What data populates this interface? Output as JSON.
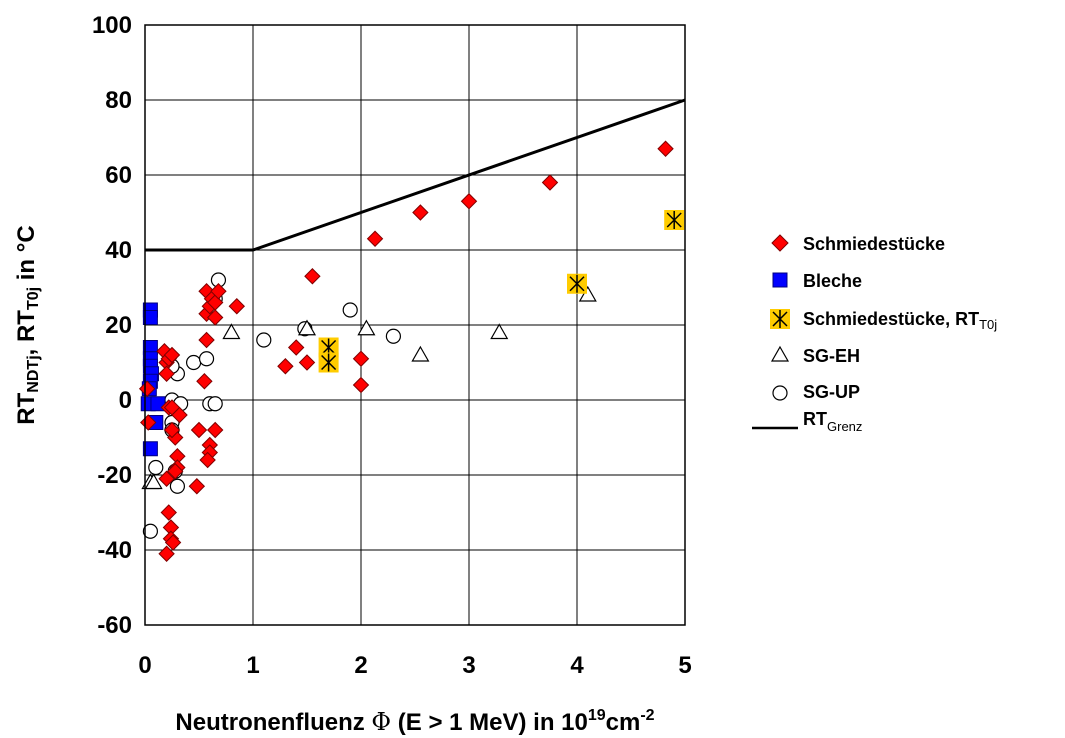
{
  "chart_data": {
    "type": "scatter",
    "xlabel_parts": [
      "Neutronenfluenz ",
      "Φ",
      " (E > 1 MeV) in 10",
      "19",
      "cm",
      "-2"
    ],
    "ylabel_parts": [
      "RT",
      "NDTj",
      ", RT",
      "T0j",
      "  in °C"
    ],
    "xlim": [
      0,
      5
    ],
    "ylim": [
      -60,
      100
    ],
    "x_ticks": [
      "0",
      "1",
      "2",
      "3",
      "4",
      "5"
    ],
    "y_ticks": [
      "100",
      "80",
      "60",
      "40",
      "20",
      "0",
      "-20",
      "-40",
      "-60"
    ],
    "grid": true,
    "legend_position": "right",
    "series": [
      {
        "name": "Schmiedestücke",
        "marker": "diamond",
        "color": "#ff0000",
        "points": [
          [
            0.02,
            3
          ],
          [
            0.03,
            -6
          ],
          [
            0.18,
            13
          ],
          [
            0.2,
            10
          ],
          [
            0.22,
            11
          ],
          [
            0.2,
            7
          ],
          [
            0.25,
            12
          ],
          [
            0.22,
            -2
          ],
          [
            0.25,
            -2
          ],
          [
            0.28,
            -10
          ],
          [
            0.25,
            -8
          ],
          [
            0.32,
            -4
          ],
          [
            0.3,
            -15
          ],
          [
            0.3,
            -18
          ],
          [
            0.2,
            -21
          ],
          [
            0.28,
            -19
          ],
          [
            0.22,
            -30
          ],
          [
            0.24,
            -34
          ],
          [
            0.24,
            -37
          ],
          [
            0.26,
            -38
          ],
          [
            0.2,
            -41
          ],
          [
            0.48,
            -23
          ],
          [
            0.5,
            -8
          ],
          [
            0.55,
            5
          ],
          [
            0.57,
            16
          ],
          [
            0.57,
            23
          ],
          [
            0.6,
            25
          ],
          [
            0.57,
            29
          ],
          [
            0.62,
            27
          ],
          [
            0.65,
            26
          ],
          [
            0.68,
            29
          ],
          [
            0.65,
            22
          ],
          [
            0.85,
            25
          ],
          [
            0.6,
            -12
          ],
          [
            0.6,
            -14
          ],
          [
            0.58,
            -16
          ],
          [
            0.65,
            -8
          ],
          [
            1.3,
            9
          ],
          [
            1.4,
            14
          ],
          [
            1.5,
            10
          ],
          [
            1.55,
            33
          ],
          [
            2.0,
            11
          ],
          [
            2.0,
            4
          ],
          [
            2.13,
            43
          ],
          [
            2.55,
            50
          ],
          [
            3.0,
            53
          ],
          [
            3.75,
            58
          ],
          [
            4.82,
            67
          ]
        ]
      },
      {
        "name": "Bleche",
        "marker": "square",
        "color": "#0000ff",
        "points": [
          [
            0.05,
            24
          ],
          [
            0.05,
            22
          ],
          [
            0.05,
            14
          ],
          [
            0.05,
            11
          ],
          [
            0.05,
            9
          ],
          [
            0.06,
            7
          ],
          [
            0.05,
            5
          ],
          [
            0.04,
            3
          ],
          [
            0.03,
            -1
          ],
          [
            0.12,
            -1
          ],
          [
            0.1,
            -6
          ],
          [
            0.05,
            -13
          ]
        ]
      },
      {
        "name": "Schmiedestücke, RT",
        "name_sub": "T0j",
        "marker": "star-box",
        "color": "#ffcc00",
        "points": [
          [
            1.7,
            14
          ],
          [
            1.7,
            10
          ],
          [
            4.0,
            31
          ],
          [
            4.9,
            48
          ]
        ]
      },
      {
        "name": "SG-EH",
        "marker": "triangle",
        "color": "#000000",
        "points": [
          [
            0.05,
            -22
          ],
          [
            0.08,
            -22
          ],
          [
            0.8,
            18
          ],
          [
            1.5,
            19
          ],
          [
            2.05,
            19
          ],
          [
            2.55,
            12
          ],
          [
            3.28,
            18
          ],
          [
            4.1,
            28
          ]
        ]
      },
      {
        "name": "SG-UP",
        "marker": "circle",
        "color": "#000000",
        "points": [
          [
            0.05,
            -35
          ],
          [
            0.1,
            -18
          ],
          [
            0.25,
            0
          ],
          [
            0.25,
            -6
          ],
          [
            0.25,
            -8
          ],
          [
            0.28,
            -19
          ],
          [
            0.3,
            -23
          ],
          [
            0.3,
            7
          ],
          [
            0.33,
            -1
          ],
          [
            0.45,
            10
          ],
          [
            0.57,
            11
          ],
          [
            0.6,
            -1
          ],
          [
            0.65,
            -1
          ],
          [
            0.68,
            32
          ],
          [
            0.65,
            27
          ],
          [
            1.1,
            16
          ],
          [
            1.48,
            19
          ],
          [
            1.9,
            24
          ],
          [
            2.3,
            17
          ],
          [
            0.25,
            9
          ]
        ]
      },
      {
        "name": "RT",
        "name_sub": "Grenz",
        "marker": "line",
        "color": "#000000",
        "points": [
          [
            0,
            40
          ],
          [
            1,
            40
          ],
          [
            5,
            80
          ]
        ]
      }
    ]
  }
}
